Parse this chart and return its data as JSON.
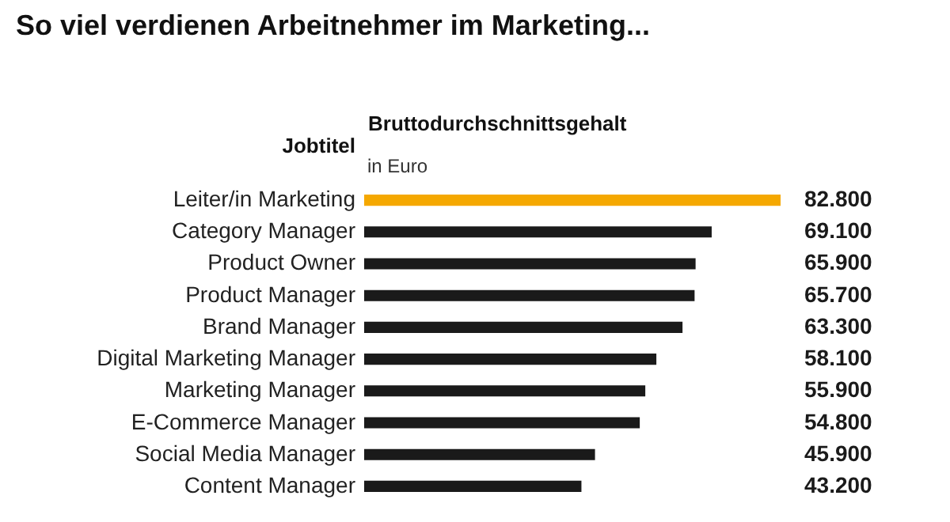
{
  "chart_data": {
    "type": "bar",
    "orientation": "horizontal",
    "title": "So viel verdienen Arbeitnehmer im Marketing...",
    "ylabel": "Jobtitel",
    "xlabel": "Bruttodurchschnittsgehalt",
    "annotations": [
      "in Euro"
    ],
    "categories": [
      "Leiter/in Marketing",
      "Category Manager",
      "Product Owner",
      "Product Manager",
      "Brand Manager",
      "Digital Marketing Manager",
      "Marketing Manager",
      "E-Commerce Manager",
      "Social Media Manager",
      "Content Manager"
    ],
    "values": [
      82800,
      69100,
      65900,
      65700,
      63300,
      58100,
      55900,
      54800,
      45900,
      43200
    ],
    "colors": [
      "#f5a800",
      "#1a1a1a",
      "#1a1a1a",
      "#1a1a1a",
      "#1a1a1a",
      "#1a1a1a",
      "#1a1a1a",
      "#1a1a1a",
      "#1a1a1a",
      "#1a1a1a"
    ],
    "value_labels": [
      "82.800",
      "69.100",
      "65.900",
      "65.700",
      "63.300",
      "58.100",
      "55.900",
      "54.800",
      "45.900",
      "43.200"
    ]
  }
}
